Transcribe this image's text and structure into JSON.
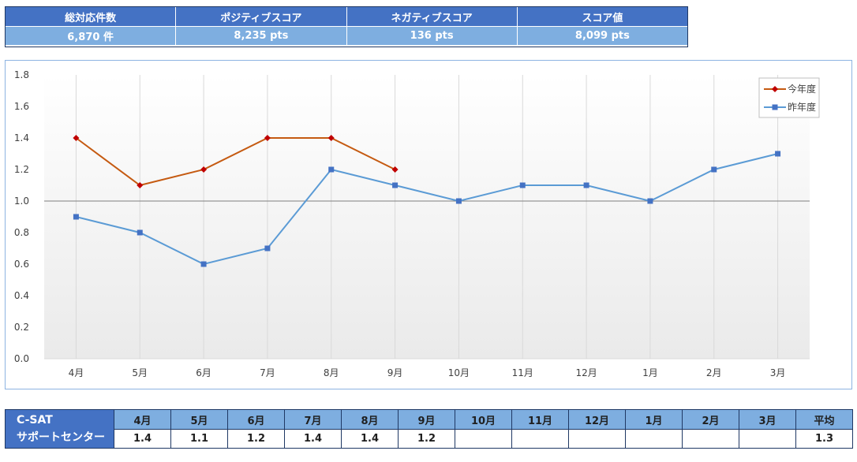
{
  "kpi": {
    "headers": [
      "総対応件数",
      "ポジティブスコア",
      "ネガティブスコア",
      "スコア値"
    ],
    "values": [
      "6,870 件",
      "8,235 pts",
      "136 pts",
      "8,099 pts"
    ]
  },
  "chart_data": {
    "type": "line",
    "categories": [
      "4月",
      "5月",
      "6月",
      "7月",
      "8月",
      "9月",
      "10月",
      "11月",
      "12月",
      "1月",
      "2月",
      "3月"
    ],
    "series": [
      {
        "name": "今年度",
        "values": [
          1.4,
          1.1,
          1.2,
          1.4,
          1.4,
          1.2,
          null,
          null,
          null,
          null,
          null,
          null
        ],
        "color": "#c55a11",
        "marker": "diamond"
      },
      {
        "name": "昨年度",
        "values": [
          0.9,
          0.8,
          0.6,
          0.7,
          1.2,
          1.1,
          1.0,
          1.1,
          1.1,
          1.0,
          1.2,
          1.3
        ],
        "color": "#5b9bd5",
        "marker": "square"
      }
    ],
    "ylim": [
      0,
      1.8
    ],
    "yticks": [
      "0.0",
      "0.2",
      "0.4",
      "0.6",
      "0.8",
      "1.0",
      "1.2",
      "1.4",
      "1.6",
      "1.8"
    ],
    "reference_line": 1.0,
    "legend_position": "top-right",
    "grid": "vertical"
  },
  "bottom_table": {
    "label_line1": "C-SAT",
    "label_line2": "サポートセンター",
    "months": [
      "4月",
      "5月",
      "6月",
      "7月",
      "8月",
      "9月",
      "10月",
      "11月",
      "12月",
      "1月",
      "2月",
      "3月"
    ],
    "values": [
      "1.4",
      "1.1",
      "1.2",
      "1.4",
      "1.4",
      "1.2",
      "",
      "",
      "",
      "",
      "",
      ""
    ],
    "average_label": "平均",
    "average_value": "1.3"
  }
}
